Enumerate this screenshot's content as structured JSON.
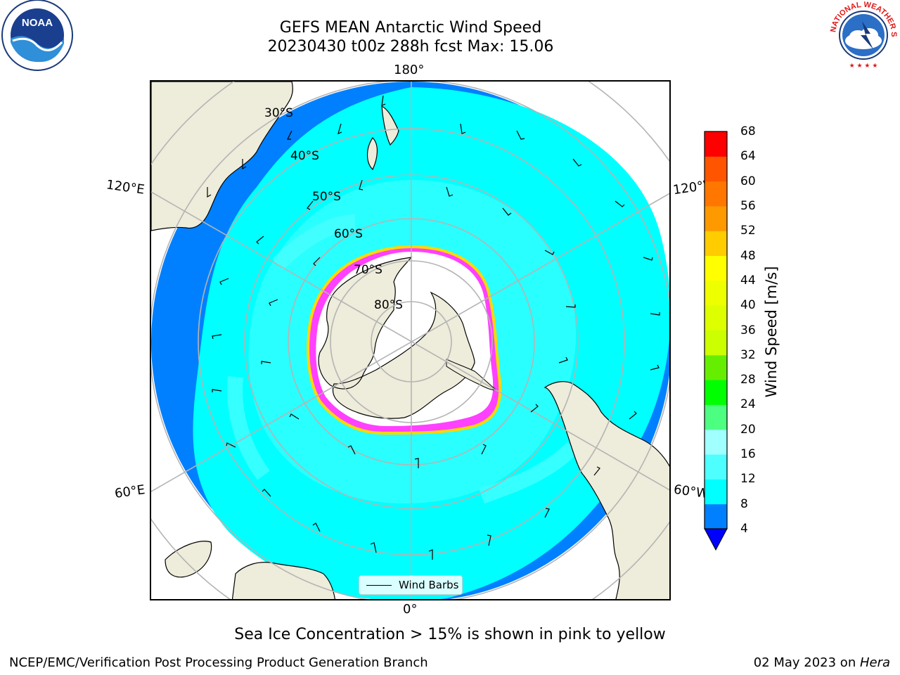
{
  "title": {
    "line1": "GEFS MEAN Antarctic Wind Speed",
    "line2": "20230430 t00z 288h fcst   Max: 15.06"
  },
  "map": {
    "projection": "south-polar-stereographic",
    "longitude_labels": {
      "top": "180°",
      "bottom": "0°",
      "upper_left": "120°E",
      "upper_right": "120°W",
      "lower_left": "60°E",
      "lower_right": "60°W"
    },
    "latitude_labels": [
      "30°S",
      "40°S",
      "50°S",
      "60°S",
      "70°S",
      "80°S"
    ],
    "legend": {
      "wind_barbs_label": "Wind Barbs"
    },
    "colors": {
      "land": "#eeecda",
      "ocean_4_8": "#0080ff",
      "ocean_8_12": "#00ffff",
      "ocean_12_16": "#4dffff",
      "sea_ice_low": "#ff00ff",
      "sea_ice_high": "#ffd700",
      "ice_shelf": "#ffffff",
      "grid": "#b4b4b4"
    }
  },
  "colorbar": {
    "label": "Wind Speed [m/s]",
    "ticks": [
      "68",
      "64",
      "60",
      "56",
      "52",
      "48",
      "44",
      "40",
      "36",
      "32",
      "28",
      "24",
      "20",
      "16",
      "12",
      "8",
      "4"
    ],
    "bins": [
      {
        "min": 4,
        "max": 8,
        "color": "#0080ff"
      },
      {
        "min": 8,
        "max": 12,
        "color": "#00ffff"
      },
      {
        "min": 12,
        "max": 16,
        "color": "#4dffff"
      },
      {
        "min": 16,
        "max": 20,
        "color": "#a0ffff"
      },
      {
        "min": 20,
        "max": 24,
        "color": "#4dff80"
      },
      {
        "min": 24,
        "max": 28,
        "color": "#00ff00"
      },
      {
        "min": 28,
        "max": 32,
        "color": "#66ee00"
      },
      {
        "min": 32,
        "max": 36,
        "color": "#ccff00"
      },
      {
        "min": 36,
        "max": 40,
        "color": "#ddff00"
      },
      {
        "min": 40,
        "max": 44,
        "color": "#eeff00"
      },
      {
        "min": 44,
        "max": 48,
        "color": "#ffff00"
      },
      {
        "min": 48,
        "max": 52,
        "color": "#ffcc00"
      },
      {
        "min": 52,
        "max": 56,
        "color": "#ff9900"
      },
      {
        "min": 56,
        "max": 60,
        "color": "#ff7700"
      },
      {
        "min": 60,
        "max": 64,
        "color": "#ff5500"
      },
      {
        "min": 64,
        "max": 68,
        "color": "#ff0000"
      }
    ],
    "under_color": "#0000ff"
  },
  "subtitle": "Sea Ice Concentration > 15% is shown in pink to yellow",
  "footer": {
    "left": "NCEP/EMC/Verification Post Processing Product Generation Branch",
    "right_prefix": "02 May 2023 on ",
    "right_machine": "Hera"
  },
  "logos": {
    "noaa_text": "NOAA",
    "nws_text": "NATIONAL WEATHER SERVICE"
  }
}
